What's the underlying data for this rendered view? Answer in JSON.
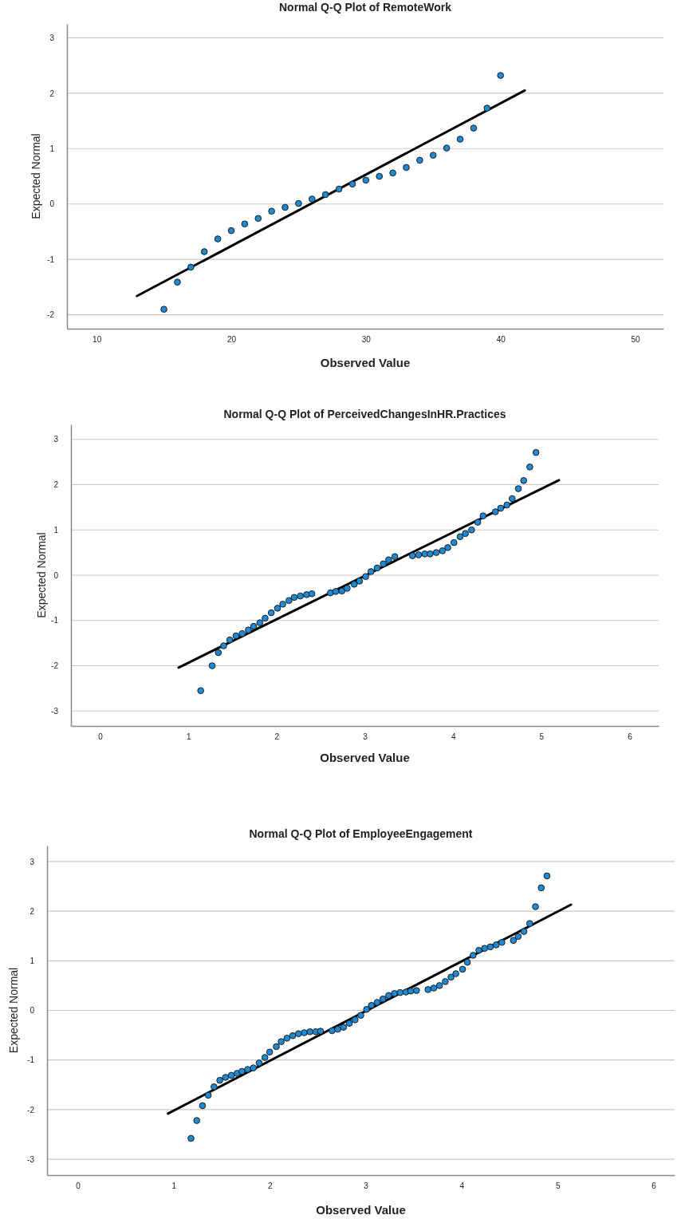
{
  "chart_data": [
    {
      "type": "scatter",
      "title": "Normal Q-Q Plot of RemoteWork",
      "xlabel": "Observed Value",
      "ylabel": "Expected Normal",
      "xlim": [
        7.8,
        52.1
      ],
      "xticks": [
        10,
        20,
        30,
        40,
        50
      ],
      "ylim": [
        -2.25,
        3.25
      ],
      "yticks": [
        -2,
        -1,
        0,
        1,
        2,
        3
      ],
      "grid": "y",
      "series": [
        {
          "marker": "circle",
          "color": "#1e8ad6",
          "x": [
            15,
            16,
            17,
            18,
            19,
            20,
            21,
            22,
            23,
            24,
            25,
            26,
            27,
            28,
            29,
            30,
            31,
            32,
            33,
            34,
            35,
            36,
            37,
            38,
            39,
            40
          ],
          "values": [
            -1.9,
            -1.41,
            -1.14,
            -0.86,
            -0.63,
            -0.48,
            -0.36,
            -0.26,
            -0.13,
            -0.06,
            0.01,
            0.09,
            0.17,
            0.27,
            0.36,
            0.43,
            0.5,
            0.56,
            0.66,
            0.79,
            0.88,
            1.01,
            1.17,
            1.37,
            1.73,
            2.32
          ]
        },
        {
          "type": "line",
          "marker": "none",
          "color": "#000000",
          "x": [
            13,
            41.8
          ],
          "values": [
            -1.66,
            2.05
          ]
        }
      ]
    },
    {
      "type": "scatter",
      "title": "Normal Q-Q Plot of PerceivedChangesInHR.Practices",
      "xlabel": "Observed Value",
      "ylabel": "Expected Normal",
      "xlim": [
        -0.33,
        6.33
      ],
      "xticks": [
        0,
        1,
        2,
        3,
        4,
        5,
        6
      ],
      "ylim": [
        -3.33,
        3.33
      ],
      "yticks": [
        -3,
        -2,
        -1,
        0,
        1,
        2,
        3
      ],
      "grid": "y",
      "series": [
        {
          "marker": "circle",
          "color": "#1e8ad6",
          "x": [
            1.14,
            1.27,
            1.34,
            1.4,
            1.47,
            1.54,
            1.61,
            1.68,
            1.74,
            1.81,
            1.87,
            1.94,
            2.01,
            2.07,
            2.14,
            2.2,
            2.27,
            2.34,
            2.4,
            2.61,
            2.67,
            2.74,
            2.8,
            2.88,
            2.94,
            3.01,
            3.07,
            3.14,
            3.21,
            3.27,
            3.34,
            3.54,
            3.61,
            3.68,
            3.74,
            3.81,
            3.88,
            3.94,
            4.01,
            4.08,
            4.14,
            4.21,
            4.28,
            4.34,
            4.48,
            4.54,
            4.61,
            4.67,
            4.74,
            4.8,
            4.87,
            4.94
          ],
          "values": [
            -2.55,
            -2.0,
            -1.71,
            -1.56,
            -1.43,
            -1.34,
            -1.29,
            -1.21,
            -1.13,
            -1.05,
            -0.95,
            -0.83,
            -0.73,
            -0.64,
            -0.56,
            -0.49,
            -0.46,
            -0.43,
            -0.41,
            -0.39,
            -0.36,
            -0.35,
            -0.29,
            -0.2,
            -0.13,
            -0.03,
            0.08,
            0.16,
            0.25,
            0.34,
            0.41,
            0.43,
            0.45,
            0.47,
            0.47,
            0.5,
            0.54,
            0.61,
            0.72,
            0.85,
            0.92,
            1.0,
            1.17,
            1.31,
            1.4,
            1.48,
            1.55,
            1.69,
            1.91,
            2.09,
            2.39,
            2.71
          ]
        },
        {
          "type": "line",
          "marker": "none",
          "color": "#000000",
          "x": [
            0.89,
            5.2
          ],
          "values": [
            -2.04,
            2.1
          ]
        }
      ]
    },
    {
      "type": "scatter",
      "title": "Normal Q-Q Plot of EmployeeEngagement",
      "xlabel": "Observed Value",
      "ylabel": "Expected Normal",
      "xlim": [
        -0.32,
        6.22
      ],
      "xticks": [
        0,
        1,
        2,
        3,
        4,
        5,
        6
      ],
      "ylim": [
        -3.32,
        3.32
      ],
      "yticks": [
        -3,
        -2,
        -1,
        0,
        1,
        2,
        3
      ],
      "grid": "y",
      "series": [
        {
          "marker": "circle",
          "color": "#1e8ad6",
          "x": [
            1.18,
            1.24,
            1.3,
            1.36,
            1.42,
            1.48,
            1.54,
            1.6,
            1.66,
            1.71,
            1.77,
            1.83,
            1.89,
            1.95,
            2.0,
            2.07,
            2.12,
            2.18,
            2.24,
            2.3,
            2.36,
            2.42,
            2.48,
            2.53,
            2.65,
            2.71,
            2.77,
            2.83,
            2.89,
            2.95,
            3.01,
            3.06,
            3.12,
            3.18,
            3.24,
            3.3,
            3.36,
            3.42,
            3.47,
            3.53,
            3.65,
            3.71,
            3.77,
            3.83,
            3.89,
            3.94,
            4.01,
            4.06,
            4.12,
            4.18,
            4.24,
            4.3,
            4.36,
            4.42,
            4.54,
            4.59,
            4.65,
            4.71,
            4.77,
            4.83,
            4.89
          ],
          "values": [
            -2.58,
            -2.22,
            -1.92,
            -1.71,
            -1.54,
            -1.41,
            -1.35,
            -1.31,
            -1.27,
            -1.23,
            -1.19,
            -1.16,
            -1.06,
            -0.95,
            -0.84,
            -0.73,
            -0.63,
            -0.56,
            -0.51,
            -0.47,
            -0.45,
            -0.43,
            -0.43,
            -0.42,
            -0.41,
            -0.38,
            -0.34,
            -0.26,
            -0.19,
            -0.1,
            0.02,
            0.1,
            0.16,
            0.23,
            0.3,
            0.34,
            0.36,
            0.37,
            0.39,
            0.4,
            0.42,
            0.45,
            0.5,
            0.58,
            0.67,
            0.74,
            0.83,
            0.97,
            1.11,
            1.21,
            1.25,
            1.28,
            1.32,
            1.37,
            1.41,
            1.49,
            1.59,
            1.75,
            2.09,
            2.47,
            2.71
          ]
        },
        {
          "type": "line",
          "marker": "none",
          "color": "#000000",
          "x": [
            0.94,
            5.14
          ],
          "values": [
            -2.08,
            2.13
          ]
        }
      ]
    }
  ]
}
